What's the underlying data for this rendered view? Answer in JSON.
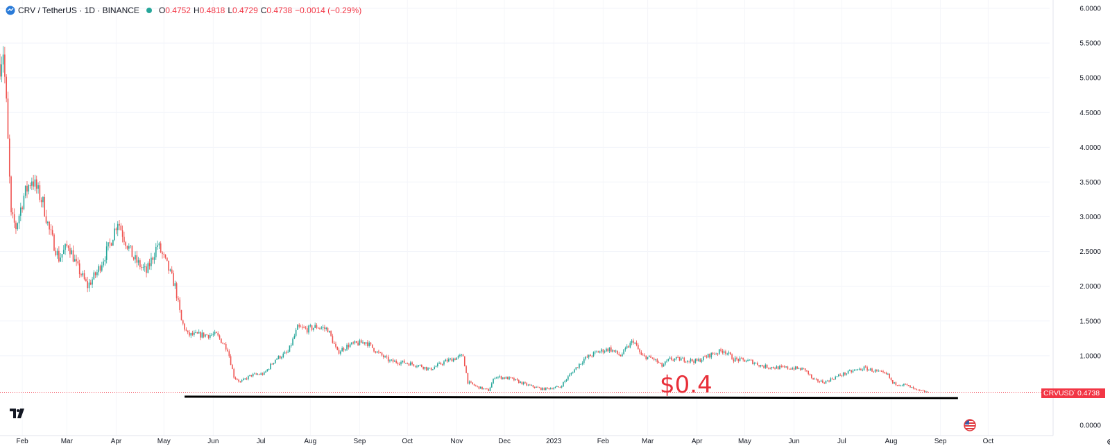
{
  "legend": {
    "symbol": "CRV / TetherUS · 1D · BINANCE",
    "open_key": "O",
    "open": "0.4752",
    "high_key": "H",
    "high": "0.4818",
    "low_key": "L",
    "low": "0.4729",
    "close_key": "C",
    "close": "0.4738",
    "change": "−0.0014 (−0.29%)"
  },
  "annotation": "$0.4",
  "price_label": {
    "ticker": "CRVUSDT",
    "price": "0.4738"
  },
  "colors": {
    "up": "#26a69a",
    "down": "#ef5350",
    "last_price": "#f23645",
    "support": "#000000",
    "annotation": "#e8303a"
  },
  "icons": [
    "tradingview-logo-icon",
    "settings-gear-icon",
    "us-flag-icon",
    "live-dot-icon"
  ],
  "chart_data": {
    "type": "candlestick",
    "y_axis_position": "right",
    "ylim": [
      0,
      6
    ],
    "y_ticks": [
      "6.0000",
      "5.5000",
      "5.0000",
      "4.5000",
      "4.0000",
      "3.5000",
      "3.0000",
      "2.5000",
      "2.0000",
      "1.5000",
      "1.0000",
      "0.0000"
    ],
    "x_ticks": [
      "Feb",
      "Mar",
      "Apr",
      "May",
      "Jun",
      "Jul",
      "Aug",
      "Sep",
      "Oct",
      "Nov",
      "Dec",
      "2023",
      "Feb",
      "Mar",
      "Apr",
      "May",
      "Jun",
      "Jul",
      "Aug",
      "Sep",
      "Oct"
    ],
    "x_range": [
      "2022-01-18",
      "2023-10-20"
    ],
    "support_level": 0.4,
    "last_price": 0.4738,
    "series": [
      {
        "name": "CRVUSDT",
        "close_path": [
          [
            "2022-01-18",
            5.2
          ],
          [
            "2022-01-20",
            5.4
          ],
          [
            "2022-01-22",
            4.6
          ],
          [
            "2022-01-25",
            3.0
          ],
          [
            "2022-01-28",
            2.85
          ],
          [
            "2022-02-02",
            3.3
          ],
          [
            "2022-02-07",
            3.55
          ],
          [
            "2022-02-10",
            3.4
          ],
          [
            "2022-02-14",
            3.2
          ],
          [
            "2022-02-18",
            2.8
          ],
          [
            "2022-02-24",
            2.4
          ],
          [
            "2022-03-02",
            2.6
          ],
          [
            "2022-03-07",
            2.3
          ],
          [
            "2022-03-14",
            2.0
          ],
          [
            "2022-03-20",
            2.2
          ],
          [
            "2022-03-28",
            2.6
          ],
          [
            "2022-04-02",
            2.95
          ],
          [
            "2022-04-06",
            2.7
          ],
          [
            "2022-04-12",
            2.4
          ],
          [
            "2022-04-20",
            2.2
          ],
          [
            "2022-04-27",
            2.6
          ],
          [
            "2022-05-03",
            2.3
          ],
          [
            "2022-05-08",
            2.0
          ],
          [
            "2022-05-12",
            1.5
          ],
          [
            "2022-05-16",
            1.3
          ],
          [
            "2022-05-25",
            1.3
          ],
          [
            "2022-06-03",
            1.3
          ],
          [
            "2022-06-10",
            1.1
          ],
          [
            "2022-06-14",
            0.7
          ],
          [
            "2022-06-18",
            0.62
          ],
          [
            "2022-06-25",
            0.72
          ],
          [
            "2022-07-03",
            0.74
          ],
          [
            "2022-07-10",
            0.95
          ],
          [
            "2022-07-18",
            1.05
          ],
          [
            "2022-07-24",
            1.4
          ],
          [
            "2022-07-30",
            1.38
          ],
          [
            "2022-08-05",
            1.42
          ],
          [
            "2022-08-12",
            1.38
          ],
          [
            "2022-08-18",
            1.05
          ],
          [
            "2022-08-25",
            1.15
          ],
          [
            "2022-09-05",
            1.2
          ],
          [
            "2022-09-12",
            1.05
          ],
          [
            "2022-09-20",
            0.92
          ],
          [
            "2022-09-30",
            0.9
          ],
          [
            "2022-10-10",
            0.85
          ],
          [
            "2022-10-15",
            0.8
          ],
          [
            "2022-10-25",
            0.92
          ],
          [
            "2022-11-05",
            1.0
          ],
          [
            "2022-11-08",
            0.62
          ],
          [
            "2022-11-14",
            0.55
          ],
          [
            "2022-11-21",
            0.5
          ],
          [
            "2022-11-25",
            0.7
          ],
          [
            "2022-12-05",
            0.67
          ],
          [
            "2022-12-15",
            0.58
          ],
          [
            "2022-12-25",
            0.52
          ],
          [
            "2023-01-05",
            0.55
          ],
          [
            "2023-01-12",
            0.75
          ],
          [
            "2023-01-20",
            0.95
          ],
          [
            "2023-01-28",
            1.05
          ],
          [
            "2023-02-05",
            1.1
          ],
          [
            "2023-02-12",
            1.0
          ],
          [
            "2023-02-20",
            1.22
          ],
          [
            "2023-02-25",
            1.0
          ],
          [
            "2023-03-05",
            0.95
          ],
          [
            "2023-03-10",
            0.85
          ],
          [
            "2023-03-15",
            0.95
          ],
          [
            "2023-03-22",
            0.95
          ],
          [
            "2023-04-01",
            0.92
          ],
          [
            "2023-04-10",
            1.02
          ],
          [
            "2023-04-18",
            1.08
          ],
          [
            "2023-04-24",
            0.95
          ],
          [
            "2023-05-05",
            0.92
          ],
          [
            "2023-05-12",
            0.85
          ],
          [
            "2023-05-20",
            0.83
          ],
          [
            "2023-06-01",
            0.82
          ],
          [
            "2023-06-08",
            0.8
          ],
          [
            "2023-06-13",
            0.65
          ],
          [
            "2023-06-20",
            0.62
          ],
          [
            "2023-06-30",
            0.72
          ],
          [
            "2023-07-08",
            0.78
          ],
          [
            "2023-07-15",
            0.82
          ],
          [
            "2023-07-22",
            0.78
          ],
          [
            "2023-07-30",
            0.72
          ],
          [
            "2023-08-02",
            0.6
          ],
          [
            "2023-08-10",
            0.58
          ],
          [
            "2023-08-17",
            0.5
          ],
          [
            "2023-08-24",
            0.474
          ]
        ]
      }
    ]
  }
}
